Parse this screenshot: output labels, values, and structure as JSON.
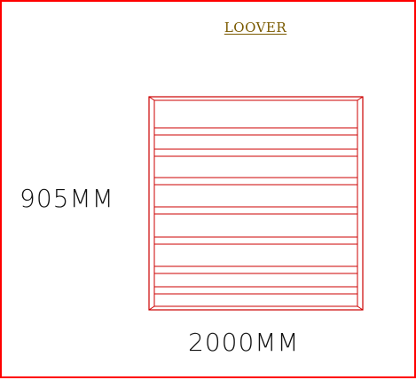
{
  "diagram": {
    "title": "LOOVER",
    "height_label": "905MM",
    "width_label": "2000MM",
    "stroke_color": "#cc0000",
    "border_color": "#ff0000",
    "title_color": "#7a5a00"
  }
}
